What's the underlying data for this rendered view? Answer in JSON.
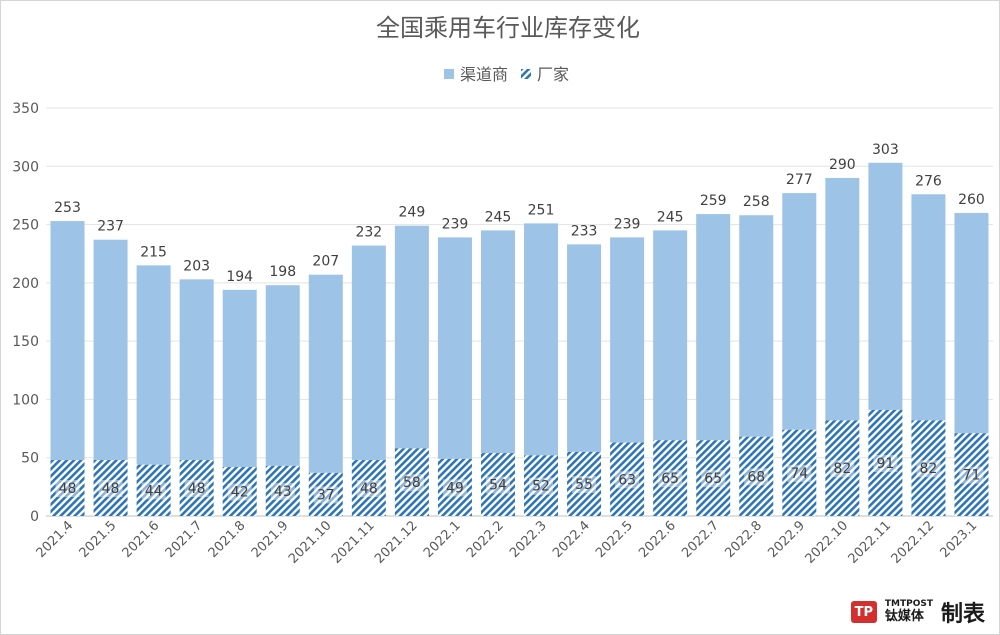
{
  "chart_data": {
    "type": "bar",
    "stacked": true,
    "title": "全国乘用车行业库存变化",
    "categories": [
      "2021.4",
      "2021.5",
      "2021.6",
      "2021.7",
      "2021.8",
      "2021.9",
      "2021.10",
      "2021.11",
      "2021.12",
      "2022.1",
      "2022.2",
      "2022.3",
      "2022.4",
      "2022.5",
      "2022.6",
      "2022.7",
      "2022.8",
      "2022.9",
      "2022.10",
      "2022.11",
      "2022.12",
      "2023.1"
    ],
    "totals": [
      253,
      237,
      215,
      203,
      194,
      198,
      207,
      232,
      249,
      239,
      245,
      251,
      233,
      239,
      245,
      259,
      258,
      277,
      290,
      303,
      276,
      260
    ],
    "series": [
      {
        "name": "渠道商",
        "color": "#9dc3e6",
        "values": [
          205,
          189,
          171,
          155,
          152,
          155,
          170,
          184,
          191,
          190,
          191,
          199,
          178,
          176,
          180,
          194,
          190,
          203,
          208,
          212,
          194,
          189
        ]
      },
      {
        "name": "厂家",
        "color": "#2e75b6",
        "pattern": "diagonal-hatch",
        "values": [
          48,
          48,
          44,
          48,
          42,
          43,
          37,
          48,
          58,
          49,
          54,
          52,
          55,
          63,
          65,
          65,
          68,
          74,
          82,
          91,
          82,
          71
        ]
      }
    ],
    "ylim": [
      0,
      350
    ],
    "yticks": [
      0,
      50,
      100,
      150,
      200,
      250,
      300,
      350
    ],
    "grid": true,
    "legend": "top-center"
  },
  "watermark": {
    "logo": "TP",
    "sub": "TMTPOST",
    "name": "钛媒体",
    "made": "制表"
  }
}
